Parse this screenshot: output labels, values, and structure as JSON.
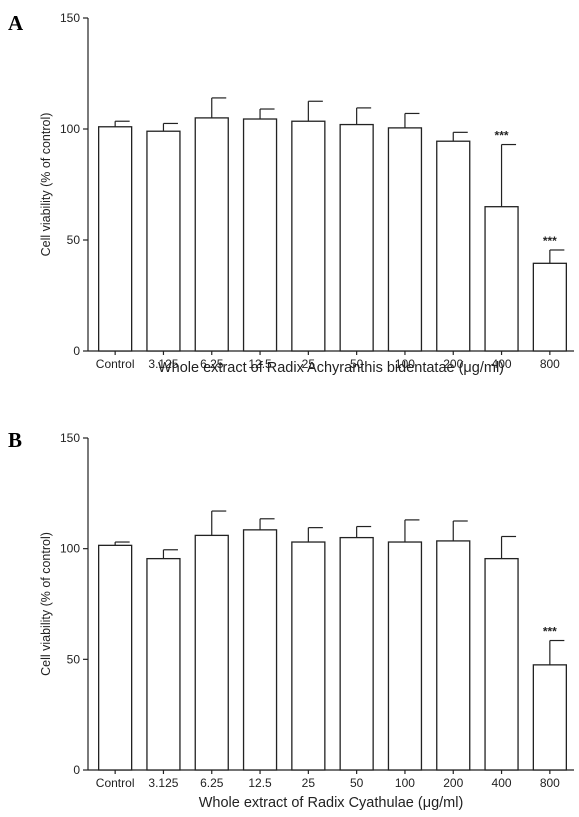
{
  "chart_data": [
    {
      "panel": "A",
      "type": "bar",
      "categories": [
        "Control",
        "3.125",
        "6.25",
        "12.5",
        "25",
        "50",
        "100",
        "200",
        "400",
        "800"
      ],
      "values": [
        101,
        99,
        105,
        104.5,
        103.5,
        102,
        100.5,
        94.5,
        65,
        39.5
      ],
      "errors": [
        2.5,
        3.5,
        9,
        4.5,
        9,
        7.5,
        6.5,
        4,
        28,
        6
      ],
      "annotations": [
        "",
        "",
        "",
        "",
        "",
        "",
        "",
        "",
        "***",
        "***"
      ],
      "xlabel": "Whole extract of Radix Achyranthis bidentatae (μg/ml)",
      "ylabel": "Cell viability (% of control)",
      "ylim": [
        0,
        150
      ],
      "yticks": [
        "0",
        "50",
        "100",
        "150"
      ],
      "grid": false,
      "bar_color": "#ffffff"
    },
    {
      "panel": "B",
      "type": "bar",
      "categories": [
        "Control",
        "3.125",
        "6.25",
        "12.5",
        "25",
        "50",
        "100",
        "200",
        "400",
        "800"
      ],
      "values": [
        101.5,
        95.5,
        106,
        108.5,
        103,
        105,
        103,
        103.5,
        95.5,
        47.5
      ],
      "errors": [
        1.5,
        4,
        11,
        5,
        6.5,
        5,
        10,
        9,
        10,
        11
      ],
      "annotations": [
        "",
        "",
        "",
        "",
        "",
        "",
        "",
        "",
        "",
        "***"
      ],
      "xlabel": "Whole extract of Radix Cyathulae (μg/ml)",
      "ylabel": "Cell viability (% of control)",
      "ylim": [
        0,
        150
      ],
      "yticks": [
        "0",
        "50",
        "100",
        "150"
      ],
      "grid": false,
      "bar_color": "#ffffff"
    }
  ]
}
